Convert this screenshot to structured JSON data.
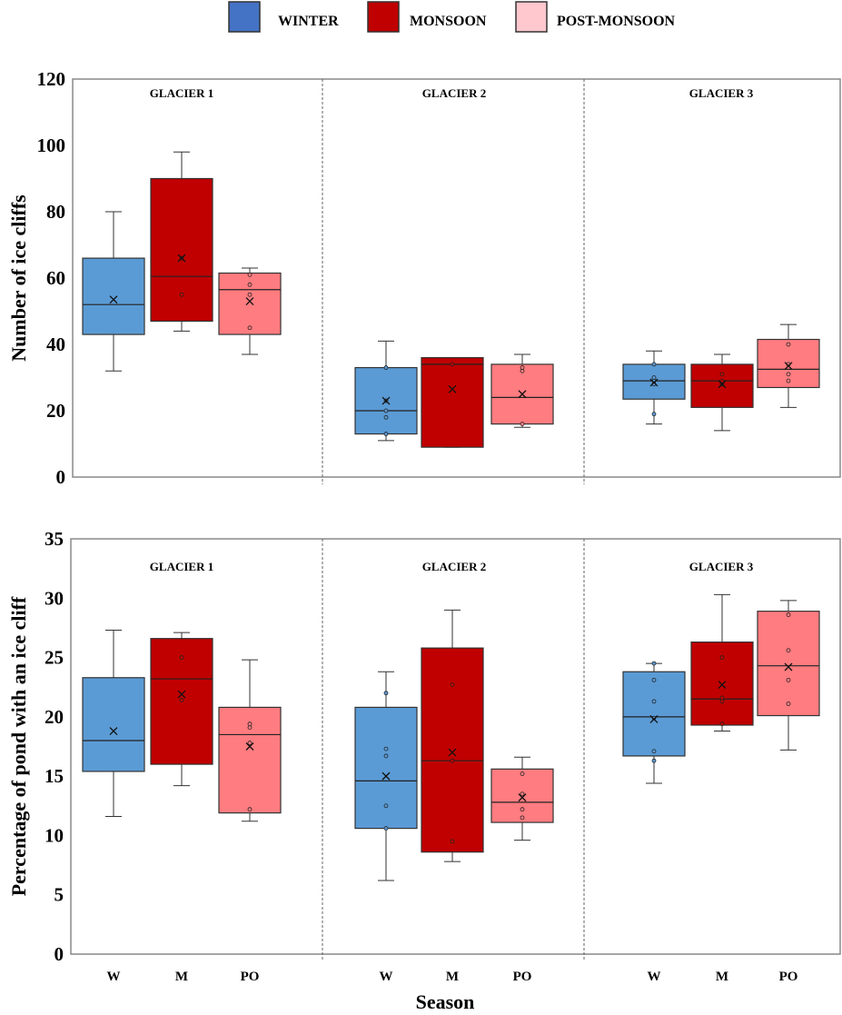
{
  "legend": [
    {
      "label": "WINTER",
      "color": "#4472c4"
    },
    {
      "label": "MONSOON",
      "color": "#c00000"
    },
    {
      "label": "POST-MONSOON",
      "color": "#ffc7ce"
    }
  ],
  "series_colors": {
    "W": "#5b9bd5",
    "M": "#c00000",
    "PO": "#ff7c80"
  },
  "chart_data": [
    {
      "type": "box",
      "ylabel": "Number of ice cliffs",
      "ylim": [
        0,
        120
      ],
      "yticks": [
        0,
        20,
        40,
        60,
        80,
        100,
        120
      ],
      "show_categories": false,
      "groups": [
        {
          "label": "GLACIER 1",
          "boxes": [
            {
              "cat": "W",
              "min": 32,
              "q1": 43,
              "median": 52,
              "q3": 66,
              "max": 80,
              "mean": 53.5,
              "points": []
            },
            {
              "cat": "M",
              "min": 44,
              "q1": 47,
              "median": 60.5,
              "q3": 90,
              "max": 98,
              "mean": 66,
              "points": [
                55,
                66
              ]
            },
            {
              "cat": "PO",
              "min": 37,
              "q1": 43,
              "median": 56.5,
              "q3": 61.5,
              "max": 63,
              "mean": 53,
              "points": [
                45,
                55,
                58,
                61
              ]
            }
          ]
        },
        {
          "label": "GLACIER 2",
          "boxes": [
            {
              "cat": "W",
              "min": 11,
              "q1": 13,
              "median": 20,
              "q3": 33,
              "max": 41,
              "mean": 23,
              "points": [
                13,
                18,
                20,
                23,
                33
              ]
            },
            {
              "cat": "M",
              "min": 9,
              "q1": 9,
              "median": 34,
              "q3": 36,
              "max": 36,
              "mean": 26.5,
              "points": [
                34
              ]
            },
            {
              "cat": "PO",
              "min": 15,
              "q1": 16,
              "median": 24,
              "q3": 34,
              "max": 37,
              "mean": 25,
              "points": [
                16,
                32,
                33
              ]
            }
          ]
        },
        {
          "label": "GLACIER 3",
          "boxes": [
            {
              "cat": "W",
              "min": 16,
              "q1": 23.5,
              "median": 29,
              "q3": 34,
              "max": 38,
              "mean": 28.5,
              "points": [
                19,
                28,
                29,
                30,
                34
              ]
            },
            {
              "cat": "M",
              "min": 14,
              "q1": 21,
              "median": 29,
              "q3": 34,
              "max": 37,
              "mean": 28,
              "points": [
                28,
                29,
                31
              ]
            },
            {
              "cat": "PO",
              "min": 21,
              "q1": 27,
              "median": 32.5,
              "q3": 41.5,
              "max": 46,
              "mean": 33.5,
              "points": [
                29,
                31,
                34,
                40
              ]
            }
          ]
        }
      ]
    },
    {
      "type": "box",
      "ylabel": "Percentage of pond with an  ice cliff",
      "xlabel": "Season",
      "ylim": [
        0,
        35
      ],
      "yticks": [
        0,
        5,
        10,
        15,
        20,
        25,
        30,
        35
      ],
      "show_categories": true,
      "groups": [
        {
          "label": "GLACIER 1",
          "boxes": [
            {
              "cat": "W",
              "min": 11.6,
              "q1": 15.4,
              "median": 18,
              "q3": 23.3,
              "max": 27.3,
              "mean": 18.8,
              "points": []
            },
            {
              "cat": "M",
              "min": 14.2,
              "q1": 16,
              "median": 23.2,
              "q3": 26.6,
              "max": 27.1,
              "mean": 21.9,
              "points": [
                21.4,
                25
              ]
            },
            {
              "cat": "PO",
              "min": 11.2,
              "q1": 11.9,
              "median": 18.5,
              "q3": 20.8,
              "max": 24.8,
              "mean": 17.5,
              "points": [
                12.2,
                17.8,
                19.1,
                19.4
              ]
            }
          ]
        },
        {
          "label": "GLACIER 2",
          "boxes": [
            {
              "cat": "W",
              "min": 6.2,
              "q1": 10.6,
              "median": 14.6,
              "q3": 20.8,
              "max": 23.8,
              "mean": 15,
              "points": [
                10.6,
                12.5,
                16.7,
                17.3,
                22
              ]
            },
            {
              "cat": "M",
              "min": 7.8,
              "q1": 8.6,
              "median": 16.3,
              "q3": 25.8,
              "max": 29,
              "mean": 17,
              "points": [
                9.5,
                16.3,
                22.7
              ]
            },
            {
              "cat": "PO",
              "min": 9.6,
              "q1": 11.1,
              "median": 12.8,
              "q3": 15.6,
              "max": 16.6,
              "mean": 13.2,
              "points": [
                11.5,
                12.2,
                13.5,
                15.2
              ]
            }
          ]
        },
        {
          "label": "GLACIER 3",
          "boxes": [
            {
              "cat": "W",
              "min": 14.4,
              "q1": 16.7,
              "median": 20,
              "q3": 23.8,
              "max": 24.5,
              "mean": 19.8,
              "points": [
                16.3,
                17.1,
                19.9,
                21.3,
                23.1,
                24.5
              ]
            },
            {
              "cat": "M",
              "min": 18.8,
              "q1": 19.3,
              "median": 21.5,
              "q3": 26.3,
              "max": 30.3,
              "mean": 22.7,
              "points": [
                19.4,
                21.3,
                21.6,
                25
              ]
            },
            {
              "cat": "PO",
              "min": 17.2,
              "q1": 20.1,
              "median": 24.3,
              "q3": 28.9,
              "max": 29.8,
              "mean": 24.2,
              "points": [
                21.1,
                23.1,
                25.6,
                28.6
              ]
            }
          ]
        }
      ]
    }
  ]
}
